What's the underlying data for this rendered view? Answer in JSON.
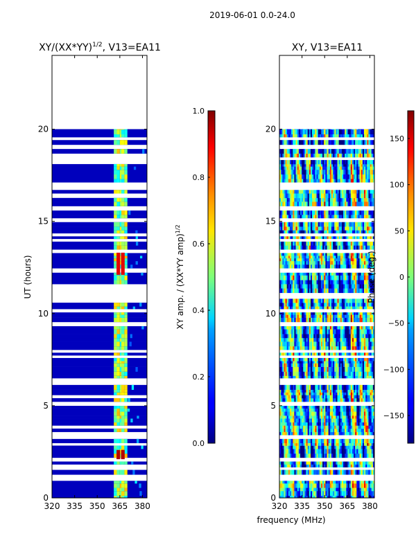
{
  "figure": {
    "suptitle": "2019-06-01 0.0-24.0",
    "shared_xlabel": "frequency (MHz)"
  },
  "chart_data": [
    {
      "type": "heatmap",
      "title": "XY/(XX*YY)",
      "title_exponent": "1/2",
      "title_suffix": ", V13=EA11",
      "xlabel": "",
      "ylabel": "UT (hours)",
      "xlim": [
        320,
        383
      ],
      "ylim": [
        0,
        24
      ],
      "x_ticks": [
        320,
        335,
        350,
        365,
        380
      ],
      "y_ticks": [
        0,
        5,
        10,
        15,
        20
      ],
      "data_extent_hours": [
        0,
        20
      ],
      "colormap": "jet",
      "colorbar": {
        "label": "XY amp. / (XX*YY amp)",
        "label_exponent": "1/2",
        "range": [
          0.0,
          1.0
        ],
        "ticks": [
          "0.0",
          "0.2",
          "0.4",
          "0.6",
          "0.8",
          "1.0"
        ]
      },
      "description_values": {
        "background_level": 0.0,
        "high_channels_MHz": [
          362,
          364,
          366,
          367,
          369
        ],
        "hot_spots": [
          {
            "freq": 364,
            "hours": [
              2.1,
              2.6
            ],
            "value": 0.95
          },
          {
            "freq": 367,
            "hours": [
              2.1,
              2.6
            ],
            "value": 0.95
          },
          {
            "freq": 364,
            "hours": [
              12.1,
              13.3
            ],
            "value": 0.9
          },
          {
            "freq": 367,
            "hours": [
              12.1,
              13.3
            ],
            "value": 0.9
          }
        ]
      }
    },
    {
      "type": "heatmap",
      "title": "XY, V13=EA11",
      "xlabel": "",
      "ylabel": "",
      "xlim": [
        320,
        383
      ],
      "ylim": [
        0,
        24
      ],
      "x_ticks": [
        320,
        335,
        350,
        365,
        380
      ],
      "y_ticks": [
        0,
        5,
        10,
        15,
        20
      ],
      "data_extent_hours": [
        0,
        20
      ],
      "colormap": "jet",
      "colorbar": {
        "label": "Phase (deg.)",
        "range": [
          -180,
          180
        ],
        "ticks": [
          "150",
          "100",
          "50",
          "0",
          "−50",
          "−100",
          "−150"
        ],
        "tick_values": [
          150,
          100,
          50,
          0,
          -50,
          -100,
          -150
        ]
      }
    }
  ]
}
